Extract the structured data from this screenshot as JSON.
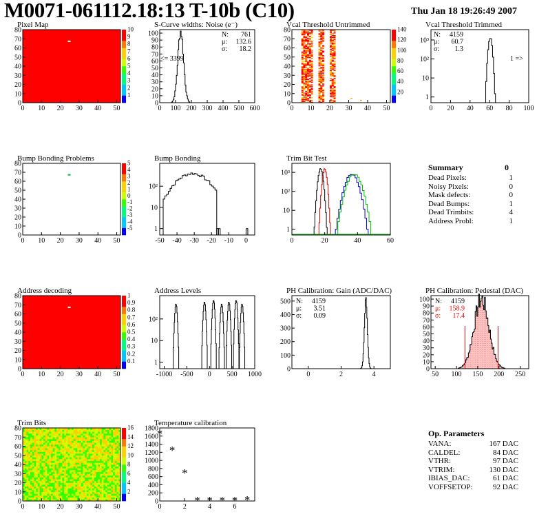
{
  "header": {
    "title": "M0071-061112.18:13 T-10b (C10)",
    "timestamp": "Thu Jan 18 19:26:49 2007"
  },
  "chart_data": [
    {
      "id": "pixel-map",
      "type": "heatmap",
      "title": "Pixel Map",
      "x": {
        "range": [
          0,
          52
        ],
        "ticks": [
          "0",
          "10",
          "20",
          "30",
          "40",
          "50"
        ]
      },
      "y": {
        "range": [
          0,
          80
        ],
        "ticks": [
          "0",
          "10",
          "20",
          "30",
          "40",
          "50",
          "60",
          "70",
          "80"
        ]
      },
      "fill": "uniform",
      "z_value": 10,
      "special_pixels": [
        {
          "x": 24,
          "y": 67,
          "z": 0
        }
      ],
      "palette_ticks": [
        "1",
        "2",
        "3",
        "4",
        "5",
        "6",
        "7",
        "8",
        "9",
        "10"
      ]
    },
    {
      "id": "scurve-widths",
      "type": "histogram",
      "title": "S-Curve widths: Noise (e⁻)",
      "x": {
        "range": [
          0,
          600
        ],
        "ticks": [
          "0",
          "100",
          "200",
          "300",
          "400",
          "500",
          "600"
        ]
      },
      "y": {
        "range": [
          0,
          105
        ],
        "ticks": [
          "0",
          "10",
          "20",
          "30",
          "40",
          "50",
          "60",
          "70",
          "80",
          "90",
          "100"
        ]
      },
      "stats": {
        "N": "761",
        "mu": "132.6",
        "sigma": "18.2"
      },
      "stat_labels": {
        "N": "N:",
        "mu": "μ:",
        "sigma": "σ:"
      },
      "annotation": "<= 3399",
      "mean": 132.6,
      "sigma": 18.2,
      "peak": 103
    },
    {
      "id": "vcal-untrimmed",
      "type": "heatmap",
      "title": "Vcal Threshold Untrimmed",
      "x": {
        "range": [
          0,
          52
        ],
        "ticks": [
          "0",
          "10",
          "20",
          "30",
          "40",
          "50"
        ]
      },
      "y": {
        "range": [
          0,
          80
        ],
        "ticks": [
          "0",
          "10",
          "20",
          "30",
          "40",
          "50",
          "60",
          "70",
          "80"
        ]
      },
      "palette_ticks": [
        "20",
        "40",
        "60",
        "80",
        "100",
        "120",
        "140"
      ],
      "hot_columns": [
        5,
        6,
        7,
        8,
        9,
        10,
        14,
        15,
        16,
        20,
        21,
        22
      ]
    },
    {
      "id": "vcal-trimmed",
      "type": "histogram",
      "title": "Vcal Threshold Trimmed",
      "log": true,
      "x": {
        "range": [
          0,
          100
        ],
        "ticks": [
          "0",
          "20",
          "40",
          "60",
          "80",
          "100"
        ]
      },
      "y": {
        "ticks": [
          "1",
          "10",
          "10²",
          "10³"
        ]
      },
      "stats": {
        "N": "4159",
        "mu": "60.7",
        "sigma": "1.3"
      },
      "stat_labels": {
        "N": "N:",
        "mu": "μ:",
        "sigma": "σ:"
      },
      "annotation": "1 =>",
      "mean": 60.7,
      "sigma": 1.3,
      "peak": 1300
    },
    {
      "id": "bump-problems",
      "type": "heatmap",
      "title": "Bump Bonding Problems",
      "x": {
        "range": [
          0,
          52
        ],
        "ticks": [
          "0",
          "10",
          "20",
          "30",
          "40",
          "50"
        ]
      },
      "y": {
        "range": [
          0,
          80
        ],
        "ticks": [
          "0",
          "10",
          "20",
          "30",
          "40",
          "50",
          "60",
          "70",
          "80"
        ]
      },
      "special_pixels": [
        {
          "x": 24,
          "y": 67,
          "z": 1
        }
      ],
      "palette_ticks": [
        "-5",
        "-4",
        "-3",
        "-2",
        "-1",
        "0",
        "1",
        "2",
        "3",
        "4",
        "5"
      ]
    },
    {
      "id": "bump-bonding",
      "type": "histogram",
      "title": "Bump Bonding",
      "log": true,
      "x": {
        "range": [
          -50,
          5
        ],
        "ticks": [
          "-50",
          "-40",
          "-30",
          "-20",
          "-10",
          "0"
        ]
      },
      "y": {
        "ticks": [
          "1",
          "10",
          "10²"
        ]
      },
      "mean": -31,
      "sigma": 7,
      "peak": 400,
      "outliers": [
        {
          "x": -17,
          "y": 1
        },
        {
          "x": -16,
          "y": 1
        },
        {
          "x": 0,
          "y": 1
        }
      ]
    },
    {
      "id": "trim-bit-test",
      "type": "histogram",
      "title": "Trim Bit Test",
      "log": true,
      "x": {
        "range": [
          0,
          60
        ],
        "ticks": [
          "0",
          "20",
          "40",
          "60"
        ]
      },
      "y": {
        "ticks": [
          "1",
          "10",
          "10²",
          "10³"
        ]
      },
      "series": [
        {
          "color": "#000000",
          "mean": 17.5,
          "sigma": 1.0,
          "peak": 1500
        },
        {
          "color": "#cc0000",
          "mean": 20.0,
          "sigma": 0.9,
          "peak": 1500
        },
        {
          "color": "#0000cc",
          "mean": 36.5,
          "sigma": 2.6,
          "peak": 800
        },
        {
          "color": "#00bb00",
          "mean": 38.0,
          "sigma": 2.8,
          "peak": 800
        }
      ]
    },
    {
      "id": "address-decoding",
      "type": "heatmap",
      "title": "Address decoding",
      "x": {
        "range": [
          0,
          52
        ],
        "ticks": [
          "0",
          "10",
          "20",
          "30",
          "40",
          "50"
        ]
      },
      "y": {
        "range": [
          0,
          80
        ],
        "ticks": [
          "0",
          "10",
          "20",
          "30",
          "40",
          "50",
          "60",
          "70",
          "80"
        ]
      },
      "fill": "uniform",
      "z_value": 1,
      "special_pixels": [
        {
          "x": 24,
          "y": 67,
          "z": 0
        }
      ],
      "palette_ticks": [
        "0.1",
        "0.2",
        "0.3",
        "0.4",
        "0.5",
        "0.6",
        "0.7",
        "0.8",
        "0.9",
        "1"
      ]
    },
    {
      "id": "address-levels",
      "type": "histogram",
      "title": "Address Levels",
      "log": true,
      "x": {
        "range": [
          -1100,
          1000
        ],
        "ticks": [
          "-1000",
          "-500",
          "0",
          "500",
          "1000"
        ]
      },
      "y": {
        "ticks": [
          "1",
          "10",
          "10²"
        ]
      },
      "peaks": [
        -740,
        -110,
        90,
        270,
        430,
        590,
        720
      ]
    },
    {
      "id": "ph-gain",
      "type": "histogram",
      "title": "PH Calibration: Gain (ADC/DAC)",
      "x": {
        "range": [
          -1,
          5
        ],
        "ticks": [
          "0",
          "2",
          "4"
        ]
      },
      "y": {
        "range": [
          0,
          540
        ],
        "ticks": [
          "0",
          "100",
          "200",
          "300",
          "400",
          "500"
        ]
      },
      "stats": {
        "N": "4159",
        "mu": "3.51",
        "sigma": "0.09"
      },
      "stat_labels": {
        "N": "N:",
        "mu": "μ:",
        "sigma": "σ:"
      },
      "mean": 3.51,
      "sigma": 0.09,
      "peak": 520
    },
    {
      "id": "ph-pedestal",
      "type": "histogram",
      "title": "PH Calibration: Pedestal (DAC)",
      "x": {
        "range": [
          40,
          270
        ],
        "ticks": [
          "50",
          "100",
          "150",
          "200",
          "250"
        ]
      },
      "y": {
        "range": [
          0,
          105
        ],
        "ticks": [
          "0",
          "10",
          "20",
          "30",
          "40",
          "50",
          "60",
          "70",
          "80",
          "90",
          "100"
        ]
      },
      "stats": {
        "N": "4159",
        "mu": "158.9",
        "sigma": "17.4"
      },
      "stat_labels": {
        "N": "N:",
        "mu": "μ:",
        "sigma": "σ:"
      },
      "mean": 158.9,
      "sigma": 17.4,
      "peak": 100,
      "cut_lines": [
        120,
        198
      ]
    },
    {
      "id": "trim-bits",
      "type": "heatmap",
      "title": "Trim Bits",
      "x": {
        "range": [
          0,
          52
        ],
        "ticks": [
          "0",
          "10",
          "20",
          "30",
          "40",
          "50"
        ]
      },
      "y": {
        "range": [
          0,
          80
        ],
        "ticks": [
          "0",
          "10",
          "20",
          "30",
          "40",
          "50",
          "60",
          "70",
          "80"
        ]
      },
      "fill": "noise",
      "palette_ticks": [
        "2",
        "4",
        "6",
        "8",
        "10",
        "12",
        "14",
        "16"
      ]
    },
    {
      "id": "temperature-calibration",
      "type": "scatter",
      "title": "Temperature calibration",
      "x": {
        "range": [
          0,
          7.6
        ],
        "ticks": [
          "0",
          "2",
          "4",
          "6"
        ]
      },
      "y": {
        "range": [
          0,
          1800
        ],
        "ticks": [
          "0",
          "200",
          "400",
          "600",
          "800",
          "1000",
          "1200",
          "1400",
          "1600",
          "1800"
        ]
      },
      "points": [
        [
          0,
          1660
        ],
        [
          1,
          1260
        ],
        [
          2,
          700
        ],
        [
          3,
          20
        ],
        [
          4,
          20
        ],
        [
          5,
          20
        ],
        [
          6,
          20
        ],
        [
          7,
          30
        ]
      ]
    }
  ],
  "summary": {
    "title": "Summary",
    "total": "0",
    "rows": [
      {
        "label": "Dead Pixels:",
        "value": "1"
      },
      {
        "label": "Noisy Pixels:",
        "value": "0"
      },
      {
        "label": "Mask defects:",
        "value": "0"
      },
      {
        "label": "Dead Bumps:",
        "value": "1"
      },
      {
        "label": "Dead Trimbits:",
        "value": "4"
      },
      {
        "label": "Address Probl:",
        "value": "1"
      }
    ]
  },
  "op_params": {
    "title": "Op. Parameters",
    "rows": [
      {
        "label": "VANA:",
        "value": "167 DAC"
      },
      {
        "label": "CALDEL:",
        "value": "84 DAC"
      },
      {
        "label": "VTHR:",
        "value": "97 DAC"
      },
      {
        "label": "VTRIM:",
        "value": "130 DAC"
      },
      {
        "label": "IBIAS_DAC:",
        "value": "61 DAC"
      },
      {
        "label": "VOFFSETOP:",
        "value": "92 DAC"
      }
    ]
  },
  "colors": {
    "dead_red": "#ff0000",
    "histo_fill": "#ffc0c0",
    "stat_red": "#ff0000"
  }
}
